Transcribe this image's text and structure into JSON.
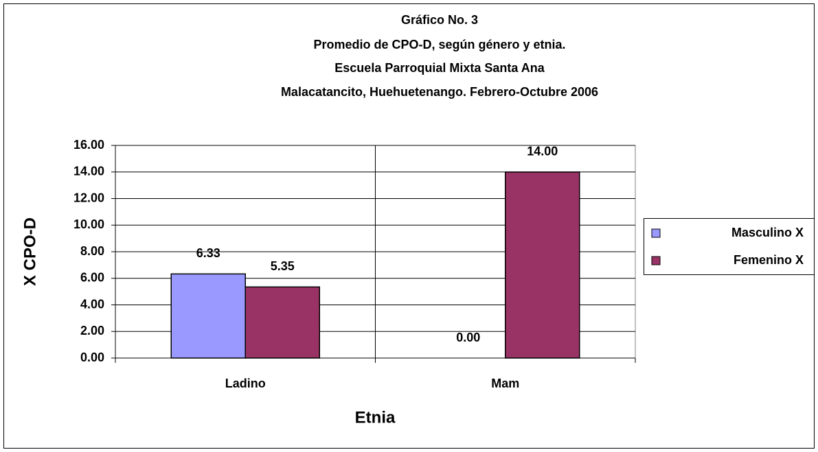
{
  "chart_data": {
    "type": "bar",
    "title": [
      "Gráfico No. 3",
      "Promedio de CPO-D, según género y etnia.",
      "Escuela Parroquial Mixta Santa Ana",
      "Malacatancito, Huehuetenango.   Febrero-Octubre  2006"
    ],
    "x_label": "Etnia",
    "y_label": "X CPO-D",
    "categories": [
      "Ladino",
      "Mam"
    ],
    "series": [
      {
        "name": "Masculino X",
        "color": "#9999ff",
        "values": [
          6.33,
          0
        ],
        "value_labels": [
          "6.33",
          "0.00"
        ]
      },
      {
        "name": "Femenino X",
        "color": "#993366",
        "values": [
          5.35,
          14
        ],
        "value_labels": [
          "5.35",
          "14.00"
        ]
      }
    ],
    "ylim": [
      0,
      16
    ],
    "yticks": [
      {
        "value": 0,
        "label": "0.00"
      },
      {
        "value": 2,
        "label": "2.00"
      },
      {
        "value": 4,
        "label": "4.00"
      },
      {
        "value": 6,
        "label": "6.00"
      },
      {
        "value": 8,
        "label": "8.00"
      },
      {
        "value": 10,
        "label": "10.00"
      },
      {
        "value": 12,
        "label": "12.00"
      },
      {
        "value": 14,
        "label": "14.00"
      },
      {
        "value": 16,
        "label": "16.00"
      }
    ],
    "grid": true,
    "legend": "right"
  }
}
